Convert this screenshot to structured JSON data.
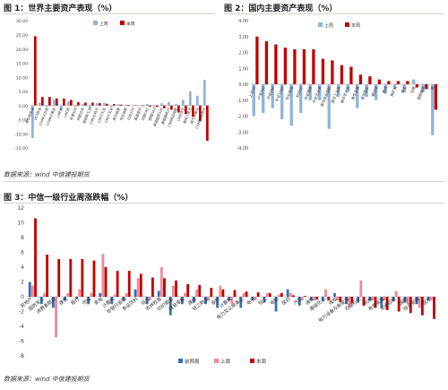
{
  "figure1": {
    "title": "图 1：世界主要资产表现（%）",
    "source": "数据来源：wind 中信建投期货"
  },
  "figure2": {
    "title": "图 2：国内主要资产表现（%）"
  },
  "figure3": {
    "title": "图 3：中信一级行业周涨跌幅（%）",
    "source": "数据来源：wind 中信建投期货"
  },
  "colors": {
    "prev": "#8fb3dd",
    "curr": "#c00000",
    "prevWeek": "#3a6fb3",
    "lastWeek": "#f08a98",
    "thisWeek": "#c00000"
  },
  "chart_data": [
    {
      "type": "bar",
      "ylim": [
        -15,
        30
      ],
      "yticks": [
        -15,
        -10,
        -5,
        0,
        5,
        10,
        15,
        20,
        25,
        30
      ],
      "tick_format": "fixed2",
      "legend_position": "top-center",
      "categories": [
        "布伦特原油",
        "WTI原油",
        "COMEX白银",
        "COMEX黄金",
        "LME铜",
        "LME铝",
        "标普500",
        "纳斯达克",
        "道琼斯工业",
        "CME比特币",
        "CBOT大豆",
        "CBOT玉米",
        "美元指数",
        "恒生指数",
        "日经225",
        "英国富时",
        "法国CAC",
        "德国DAX",
        "美国国债10Y",
        "美国国债2Y",
        "CRB商品指数",
        "CME活牛",
        "离岸人民币",
        "欧元兑美元",
        "COMEX天然气"
      ],
      "series": [
        {
          "name": "上周",
          "values": [
            -11.5,
            1.0,
            -0.5,
            2.0,
            -1.5,
            1.5,
            -0.5,
            0.5,
            -1.0,
            0.8,
            1.0,
            -0.5,
            0.5,
            0.3,
            -0.3,
            -0.2,
            0.5,
            -0.6,
            0.8,
            1.2,
            0.5,
            2.0,
            5.0,
            3.5,
            9.0
          ]
        },
        {
          "name": "本周",
          "values": [
            24.5,
            3.0,
            3.0,
            2.5,
            2.5,
            2.0,
            1.2,
            1.0,
            1.0,
            0.8,
            0.6,
            0.5,
            0.3,
            0.2,
            0.1,
            -0.2,
            -0.4,
            -0.5,
            -1.0,
            -1.5,
            -2.5,
            -3.0,
            -4.0,
            -5.5,
            -12.5
          ]
        }
      ]
    },
    {
      "type": "bar",
      "ylim": [
        -4,
        4
      ],
      "yticks": [
        -4,
        -3,
        -2,
        -1,
        0,
        1,
        2,
        3,
        4
      ],
      "tick_format": "fixed2",
      "legend_position": "top-center",
      "categories": [
        "上证50",
        "沪深300",
        "中证500",
        "中证1000",
        "创业板指",
        "科创50",
        "中证国债",
        "中证企业债",
        "南华商品指数",
        "南华工业品",
        "南华农产品",
        "南华金属",
        "南华能化",
        "螺纹钢",
        "焦煤",
        "铁矿石",
        "黄金",
        "白银",
        "国债期货",
        "铜"
      ],
      "series": [
        {
          "name": "上周",
          "values": [
            -2.0,
            -1.8,
            -1.5,
            -2.2,
            -2.6,
            -1.8,
            -1.0,
            -1.0,
            -2.8,
            -0.8,
            -0.5,
            -1.5,
            -0.8,
            -1.0,
            -0.6,
            -0.3,
            -0.5,
            0.3,
            -0.5,
            -3.2
          ]
        },
        {
          "name": "本周",
          "values": [
            3.0,
            2.7,
            2.5,
            2.3,
            2.2,
            2.2,
            2.2,
            1.6,
            1.5,
            1.2,
            1.1,
            0.6,
            0.5,
            0.3,
            0.2,
            0.2,
            0.2,
            -0.2,
            -0.3,
            -1.6
          ]
        }
      ]
    },
    {
      "type": "bar",
      "ylim": [
        -8,
        12
      ],
      "yticks": [
        -8,
        -6,
        -4,
        -2,
        0,
        2,
        4,
        6,
        8,
        10,
        12
      ],
      "tick_format": "integer",
      "legend_position": "bottom-center",
      "categories": [
        "房地产",
        "国防军工",
        "消费者服务",
        "建筑",
        "银行",
        "传媒",
        "家电",
        "计算机",
        "非银行金融",
        "食品饮料",
        "综合",
        "农林牧渔",
        "纺织服装",
        "商贸零售",
        "建材",
        "轻工制造",
        "钢铁",
        "计算机",
        "电力及公用事业",
        "电子",
        "轻工",
        "电新",
        "医药",
        "汽车",
        "通信",
        "基础化工",
        "煤炭",
        "电力设备及新能源",
        "石油石化",
        "机械",
        "有色金属",
        "交通运输",
        "国防",
        "综合金融",
        "医疗"
      ],
      "series": [
        {
          "name": "前两周",
          "values": [
            2.0,
            -1.0,
            -1.5,
            -0.5,
            -0.3,
            -1.0,
            0.5,
            -1.0,
            -0.5,
            1.0,
            -1.0,
            0.8,
            -2.5,
            -1.0,
            -0.8,
            -1.0,
            -1.5,
            -0.5,
            -1.5,
            -0.5,
            -0.8,
            -2.0,
            1.0,
            -1.2,
            -0.5,
            -0.6,
            0.5,
            -1.0,
            -0.8,
            -0.5,
            -1.5,
            -0.6,
            -0.8,
            -1.0,
            -0.5
          ]
        },
        {
          "name": "上周",
          "values": [
            1.5,
            0.5,
            -5.5,
            0.5,
            1.0,
            0.5,
            5.8,
            0.3,
            0.5,
            2.5,
            -0.5,
            4.0,
            1.5,
            0.5,
            1.0,
            -0.5,
            1.5,
            -1.0,
            0.5,
            -0.5,
            0.5,
            0.3,
            0.5,
            -0.5,
            -0.5,
            1.0,
            -0.5,
            -1.5,
            2.2,
            -0.5,
            -0.5,
            0.8,
            -1.0,
            -1.5,
            -0.5
          ]
        },
        {
          "name": "本周",
          "values": [
            10.6,
            5.7,
            5.1,
            5.1,
            5.1,
            4.9,
            4.0,
            3.5,
            3.5,
            3.1,
            2.6,
            2.5,
            2.2,
            1.7,
            1.6,
            1.2,
            1.0,
            0.9,
            0.7,
            0.6,
            0.5,
            0.5,
            0.2,
            0.1,
            -0.4,
            -0.5,
            -0.7,
            -0.9,
            -1.2,
            -1.5,
            -1.8,
            -2.0,
            -2.2,
            -2.5,
            -3.0
          ]
        }
      ]
    }
  ]
}
